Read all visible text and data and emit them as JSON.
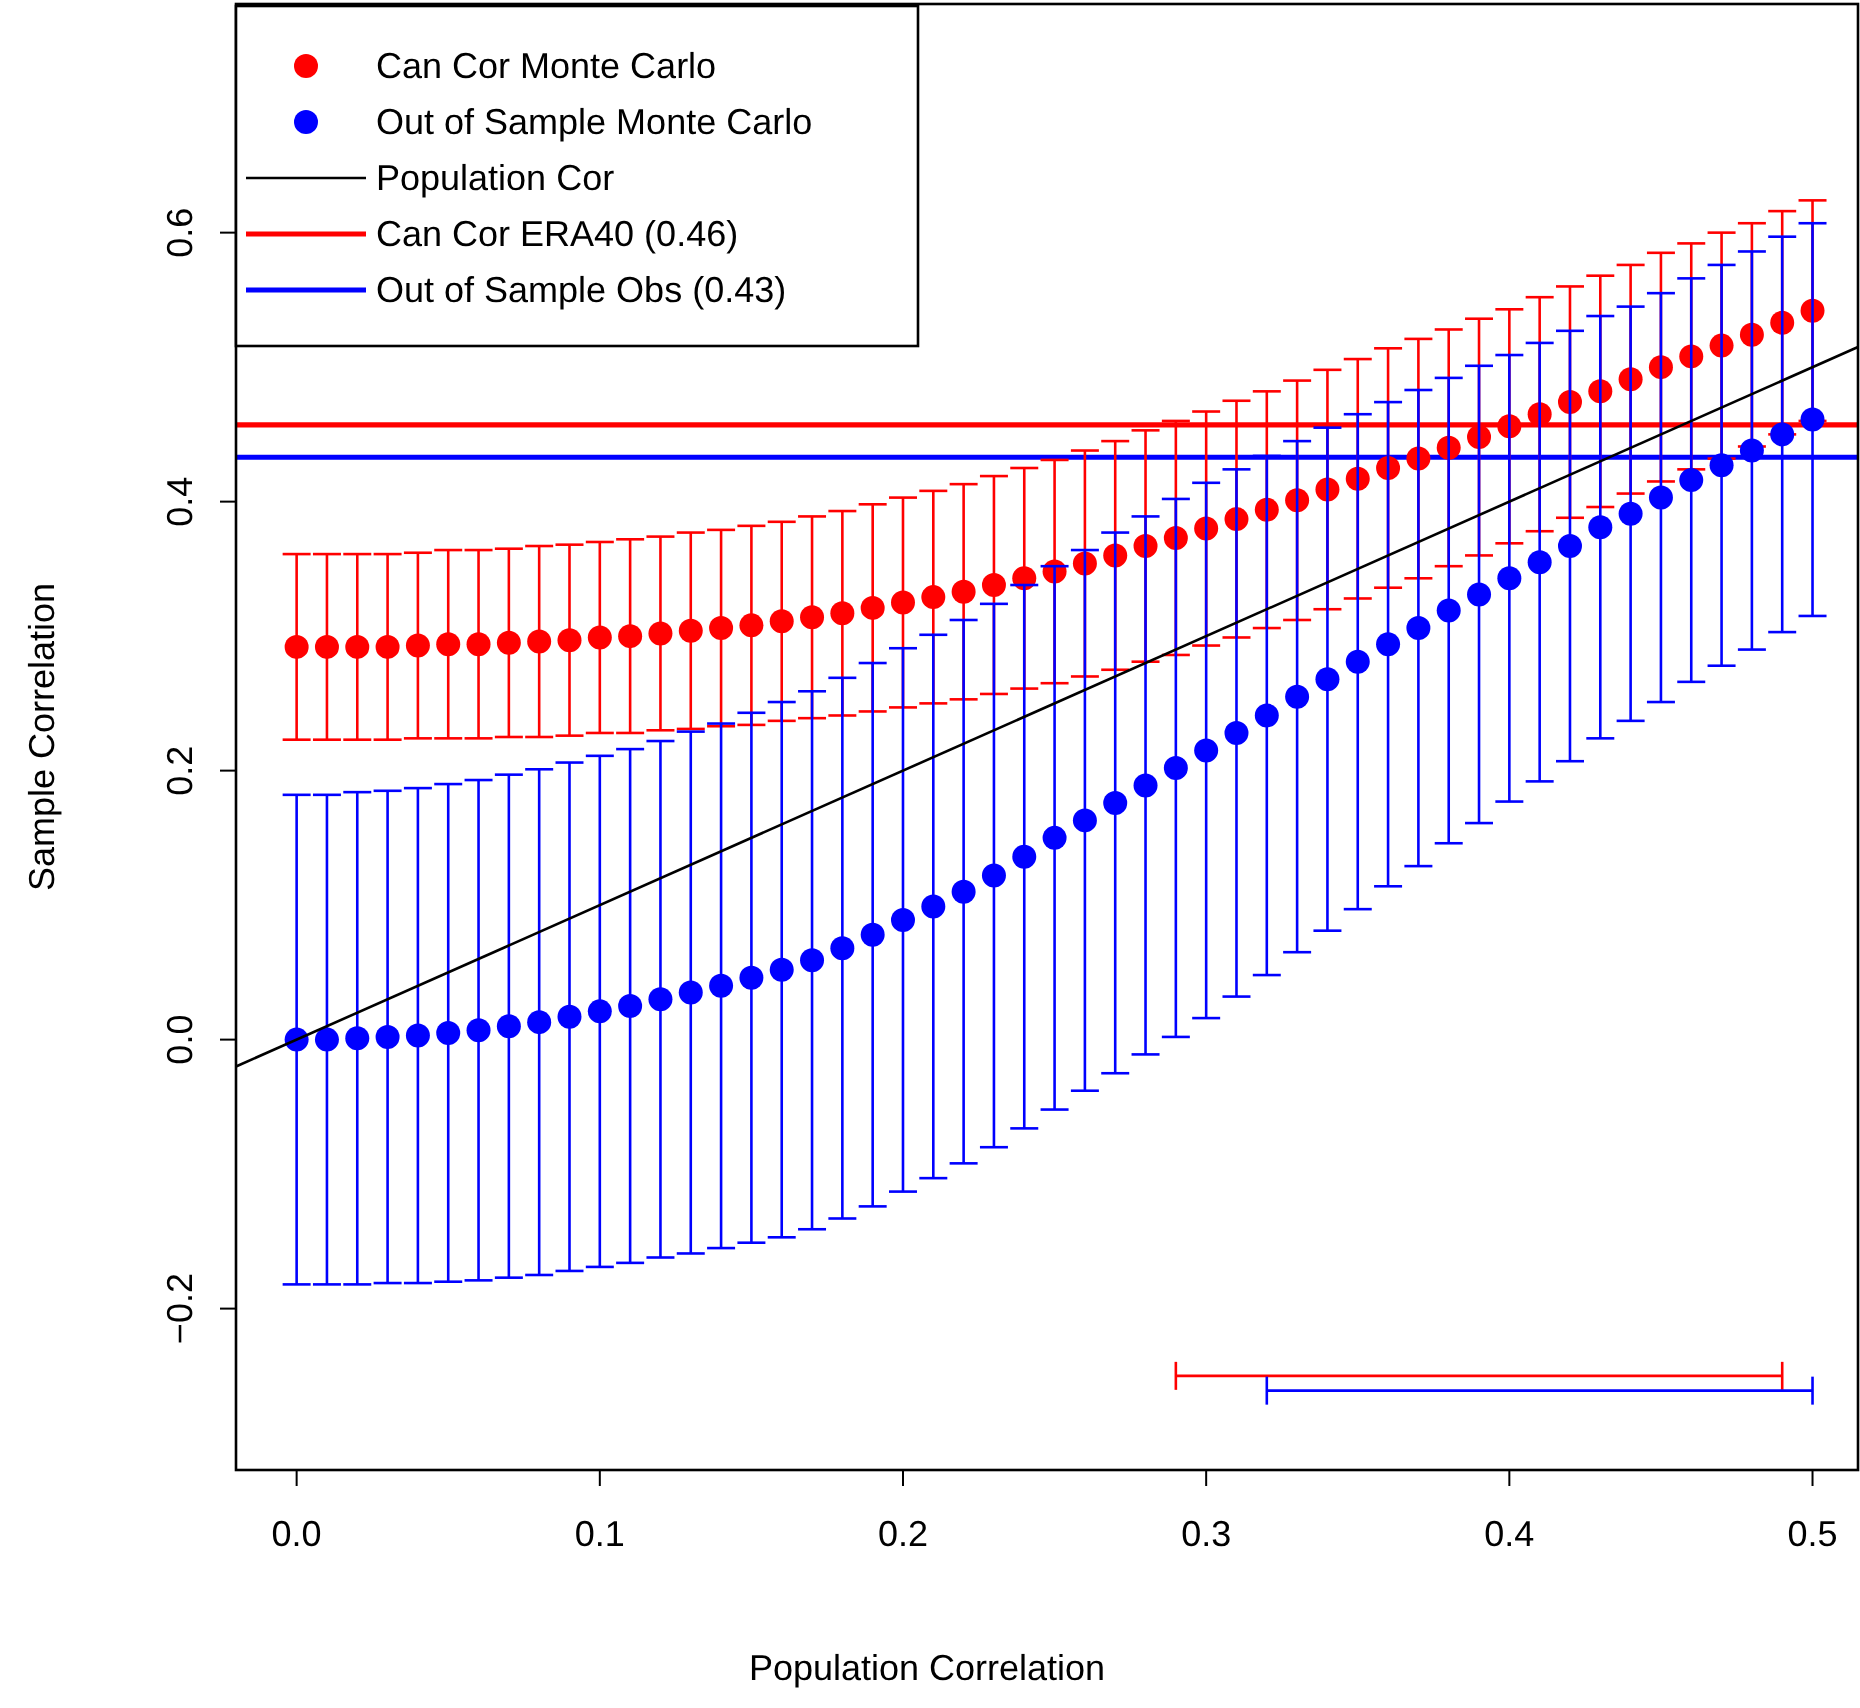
{
  "chart_data": {
    "type": "scatter",
    "xlabel": "Population Correlation",
    "ylabel": "Sample Correlation",
    "x": [
      0,
      0.01,
      0.02,
      0.03,
      0.04,
      0.05,
      0.06,
      0.07,
      0.08,
      0.09,
      0.1,
      0.11,
      0.12,
      0.13,
      0.14,
      0.15,
      0.16,
      0.17,
      0.18,
      0.19,
      0.2,
      0.21,
      0.22,
      0.23,
      0.24,
      0.25,
      0.26,
      0.27,
      0.28,
      0.29,
      0.3,
      0.31,
      0.32,
      0.33,
      0.34,
      0.35,
      0.36,
      0.37,
      0.38,
      0.39,
      0.4,
      0.41,
      0.42,
      0.43,
      0.44,
      0.45,
      0.46,
      0.47,
      0.48,
      0.49,
      0.5
    ],
    "xlim": [
      -0.02,
      0.515
    ],
    "ylim": [
      -0.32,
      0.77
    ],
    "xticks": [
      {
        "value": 0,
        "label": "0.0"
      },
      {
        "value": 0.1,
        "label": "0.1"
      },
      {
        "value": 0.2,
        "label": "0.2"
      },
      {
        "value": 0.3,
        "label": "0.3"
      },
      {
        "value": 0.4,
        "label": "0.4"
      },
      {
        "value": 0.5,
        "label": "0.5"
      }
    ],
    "yticks": [
      {
        "value": -0.2,
        "label": "−0.2"
      },
      {
        "value": 0,
        "label": "0.0"
      },
      {
        "value": 0.2,
        "label": "0.2"
      },
      {
        "value": 0.4,
        "label": "0.4"
      },
      {
        "value": 0.6,
        "label": "0.6"
      }
    ],
    "legend": "top left",
    "series": [
      {
        "name": "Can Cor Monte Carlo",
        "color": "#ff0000",
        "marker": "circle",
        "values": [
          0.292,
          0.292,
          0.292,
          0.292,
          0.293,
          0.294,
          0.294,
          0.295,
          0.296,
          0.297,
          0.299,
          0.3,
          0.302,
          0.304,
          0.306,
          0.308,
          0.311,
          0.314,
          0.317,
          0.321,
          0.325,
          0.329,
          0.333,
          0.338,
          0.343,
          0.348,
          0.354,
          0.36,
          0.367,
          0.373,
          0.38,
          0.387,
          0.394,
          0.401,
          0.409,
          0.417,
          0.425,
          0.432,
          0.44,
          0.448,
          0.456,
          0.465,
          0.474,
          0.482,
          0.491,
          0.5,
          0.508,
          0.516,
          0.524,
          0.533,
          0.542
        ],
        "errors": [
          0.069,
          0.069,
          0.069,
          0.069,
          0.069,
          0.07,
          0.07,
          0.07,
          0.071,
          0.071,
          0.071,
          0.072,
          0.072,
          0.073,
          0.073,
          0.074,
          0.074,
          0.075,
          0.076,
          0.077,
          0.078,
          0.079,
          0.08,
          0.081,
          0.082,
          0.083,
          0.084,
          0.085,
          0.086,
          0.087,
          0.087,
          0.088,
          0.088,
          0.089,
          0.089,
          0.089,
          0.089,
          0.089,
          0.088,
          0.088,
          0.087,
          0.087,
          0.086,
          0.086,
          0.085,
          0.085,
          0.084,
          0.084,
          0.083,
          0.083,
          0.082
        ]
      },
      {
        "name": "Out of Sample Monte Carlo",
        "color": "#0000ff",
        "marker": "circle",
        "values": [
          0,
          0,
          0.001,
          0.002,
          0.003,
          0.005,
          0.007,
          0.01,
          0.013,
          0.017,
          0.021,
          0.025,
          0.03,
          0.035,
          0.04,
          0.046,
          0.052,
          0.059,
          0.068,
          0.078,
          0.089,
          0.099,
          0.11,
          0.122,
          0.136,
          0.15,
          0.163,
          0.176,
          0.189,
          0.202,
          0.215,
          0.228,
          0.241,
          0.255,
          0.268,
          0.281,
          0.294,
          0.306,
          0.319,
          0.331,
          0.343,
          0.355,
          0.367,
          0.381,
          0.391,
          0.403,
          0.416,
          0.427,
          0.438,
          0.45,
          0.461
        ],
        "errors": [
          0.182,
          0.182,
          0.183,
          0.183,
          0.184,
          0.185,
          0.186,
          0.187,
          0.188,
          0.189,
          0.19,
          0.191,
          0.192,
          0.194,
          0.195,
          0.197,
          0.199,
          0.2,
          0.201,
          0.202,
          0.202,
          0.202,
          0.202,
          0.202,
          0.202,
          0.202,
          0.201,
          0.201,
          0.2,
          0.2,
          0.199,
          0.196,
          0.193,
          0.19,
          0.187,
          0.184,
          0.18,
          0.177,
          0.173,
          0.17,
          0.166,
          0.163,
          0.16,
          0.157,
          0.154,
          0.152,
          0.15,
          0.149,
          0.148,
          0.147,
          0.146
        ]
      },
      {
        "name": "Population Cor",
        "type": "line",
        "color": "#000000",
        "line_style": "solid",
        "x": [
          -0.02,
          0.515
        ],
        "values": [
          -0.02,
          0.515
        ]
      },
      {
        "type": "line",
        "color": "#ff0000",
        "x": [
          0.29,
          0.49
        ],
        "values": [
          -0.25,
          -0.25
        ]
      },
      {
        "type": "line",
        "color": "#0000ff",
        "x": [
          0.32,
          0.5
        ],
        "values": [
          -0.261,
          -0.261
        ]
      }
    ],
    "ref_lines": [
      {
        "axis": "y",
        "value": 0.457,
        "label": "Can Cor ERA40 (0.46)",
        "color": "#ff0000"
      },
      {
        "axis": "y",
        "value": 0.433,
        "label": "Out of Sample Obs (0.43)",
        "color": "#0000ff"
      }
    ]
  }
}
